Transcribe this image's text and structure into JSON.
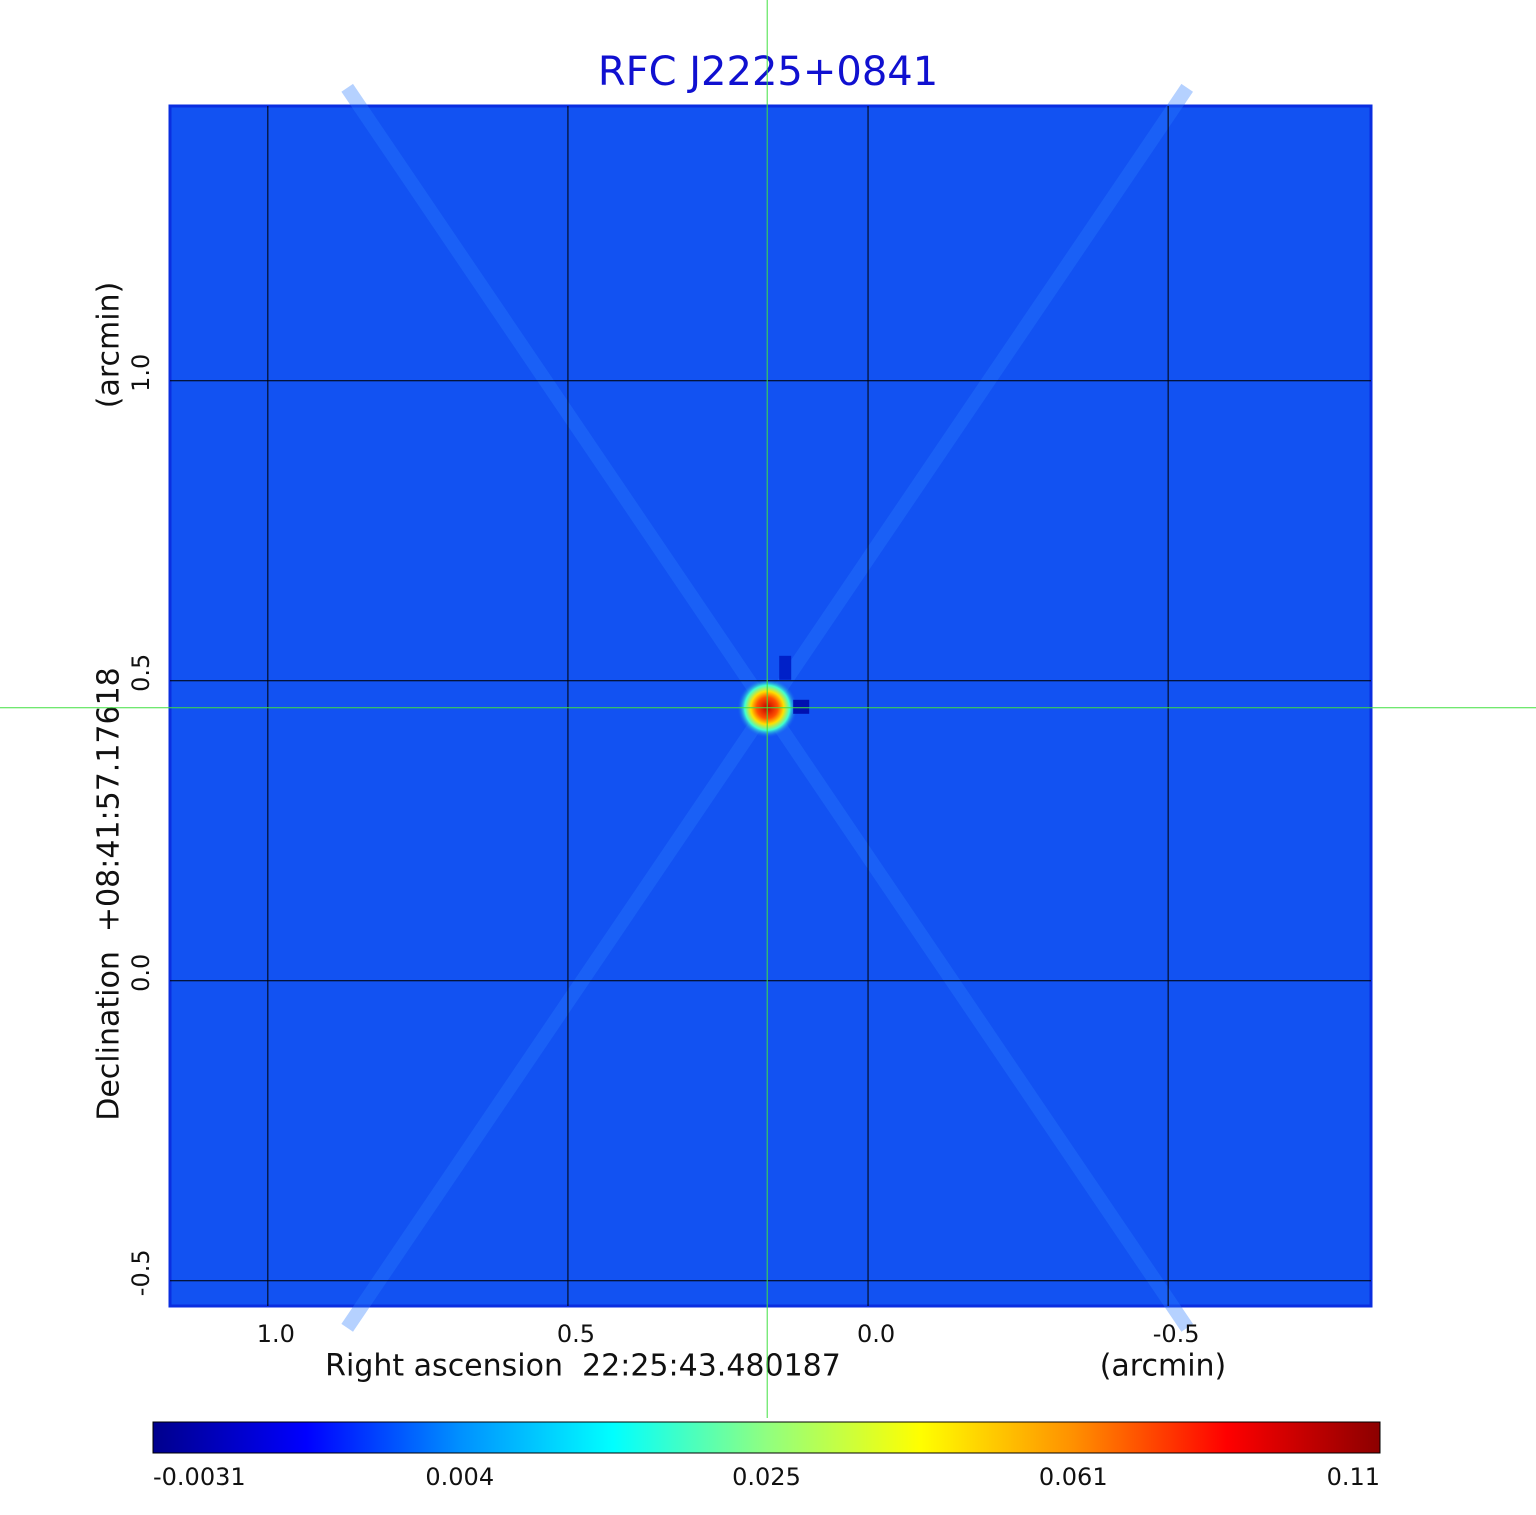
{
  "chart_data": {
    "type": "image",
    "title": "RFC J2225+0841",
    "xlabel": "Right ascension  22:25:43.480187",
    "xunit": "(arcmin)",
    "ylabel": "Declination  +08:41:57.17618",
    "yunit": "(arcmin)",
    "xlim": [
      1.163,
      -0.838
    ],
    "ylim": [
      -0.542,
      1.458
    ],
    "xticks": [
      {
        "value": 1,
        "label": "1.0"
      },
      0.5,
      {
        "value": 0,
        "label": "0.0"
      },
      -0.5
    ],
    "yticks": [
      {
        "value": 1,
        "label": "1.0"
      },
      0.5,
      {
        "value": 0,
        "label": "0.0"
      },
      -0.5
    ],
    "grid": true,
    "crosshair": [
      0.168,
      0.455
    ],
    "background_color": "#1252f2",
    "colorbar": {
      "ticks": [
        -0.0031,
        0.004,
        0.025,
        0.061,
        0.11
      ],
      "colors": [
        "#00008c",
        "#0000ff",
        "#0090ff",
        "#00ffff",
        "#90ff80",
        "#ffff00",
        "#ff9000",
        "#ff0000",
        "#8c0000"
      ]
    }
  }
}
